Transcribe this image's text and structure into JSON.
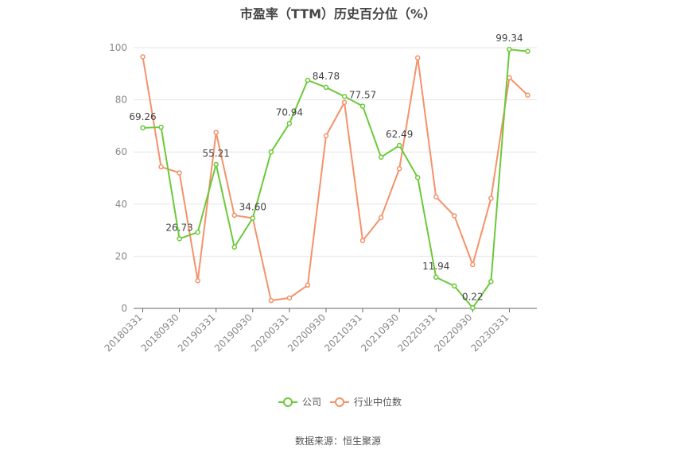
{
  "title": "市盈率（TTM）历史百分位（%）",
  "source": "数据来源：恒生聚源",
  "chart_data": {
    "type": "line",
    "title": "市盈率（TTM）历史百分位（%）",
    "ylim": [
      0,
      100
    ],
    "yticks": [
      0,
      20,
      40,
      60,
      80,
      100
    ],
    "grid": true,
    "legend_position": "bottom",
    "x": [
      "20180331",
      "20180630",
      "20180930",
      "20181231",
      "20190331",
      "20190630",
      "20190930",
      "20191231",
      "20200331",
      "20200630",
      "20200930",
      "20201231",
      "20210331",
      "20210630",
      "20210930",
      "20211231",
      "20220331",
      "20220630",
      "20220930",
      "20221231",
      "20230331",
      "20230630"
    ],
    "xtick_labels": [
      "20180331",
      "20180930",
      "20190331",
      "20190930",
      "20200331",
      "20200930",
      "20210331",
      "20210930",
      "20220331",
      "20220930",
      "20230331"
    ],
    "series": [
      {
        "name": "公司",
        "color": "#6cc93a",
        "values": [
          69.26,
          69.5,
          26.73,
          29.2,
          55.21,
          23.5,
          34.6,
          60.0,
          70.94,
          87.5,
          84.78,
          81.3,
          77.57,
          58.0,
          62.49,
          50.2,
          11.94,
          8.6,
          0.22,
          10.3,
          99.34,
          98.6
        ],
        "labels": {
          "0": "69.26",
          "2": "26.73",
          "4": "55.21",
          "6": "34.60",
          "8": "70.94",
          "10": "84.78",
          "12": "77.57",
          "14": "62.49",
          "16": "11.94",
          "18": "0.22",
          "20": "99.34"
        }
      },
      {
        "name": "行业中位数",
        "color": "#f4926a",
        "values": [
          96.5,
          54.3,
          52.0,
          10.6,
          67.5,
          35.7,
          34.6,
          3.0,
          4.0,
          8.9,
          66.2,
          79.0,
          26.0,
          34.8,
          53.6,
          96.1,
          42.8,
          35.5,
          16.8,
          42.2,
          88.5,
          81.8
        ]
      }
    ]
  }
}
